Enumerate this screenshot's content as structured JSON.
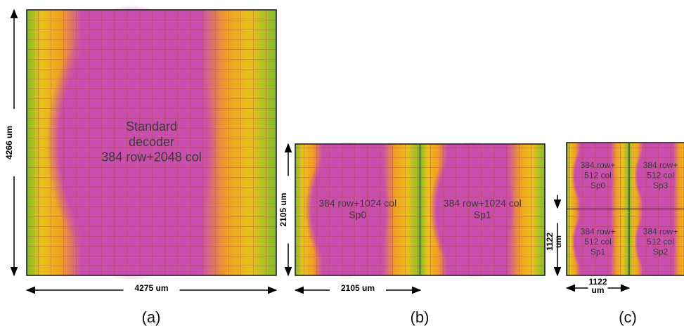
{
  "panels": [
    {
      "caption": "(a)",
      "height_label": [
        "4266 um"
      ],
      "width_label": [
        "4275 um"
      ],
      "blocks": [
        {
          "lines": [
            "Standard",
            "decoder",
            "384 row+2048 col"
          ]
        }
      ]
    },
    {
      "caption": "(b)",
      "height_label": [
        "2105 um"
      ],
      "width_label": [
        "2105 um"
      ],
      "blocks": [
        {
          "lines": [
            "384 row+1024 col",
            "Sp0"
          ]
        },
        {
          "lines": [
            "384 row+1024 col",
            "Sp1"
          ]
        }
      ]
    },
    {
      "caption": "(c)",
      "height_label": [
        "1122",
        "um"
      ],
      "width_label": [
        "1122",
        "um"
      ],
      "blocks": [
        {
          "lines": [
            "384 row+",
            "512 col",
            "Sp0"
          ]
        },
        {
          "lines": [
            "384 row+",
            "512 col",
            "Sp3"
          ]
        },
        {
          "lines": [
            "384 row+",
            "512 col",
            "Sp1"
          ]
        },
        {
          "lines": [
            "384 row+",
            "512 col",
            "Sp2"
          ]
        }
      ]
    }
  ]
}
